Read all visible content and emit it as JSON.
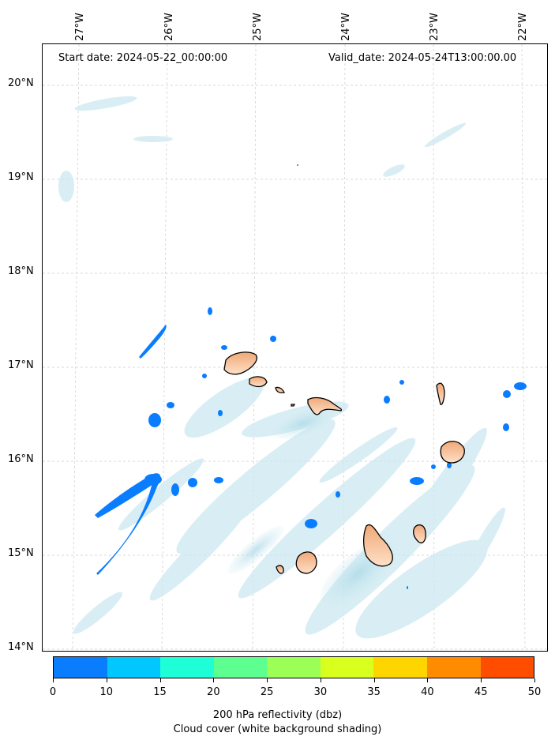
{
  "map": {
    "start_label": "Start date: 2024-05-22_00:00:00",
    "valid_label": "Valid_date: 2024-05-24T13:00:00.00",
    "longitudes": [
      "27°W",
      "26°W",
      "25°W",
      "24°W",
      "23°W",
      "22°W"
    ],
    "latitudes": [
      "20°N",
      "19°N",
      "18°N",
      "17°N",
      "16°N",
      "15°N",
      "14°N"
    ]
  },
  "colorbar": {
    "ticks": [
      "0",
      "10",
      "15",
      "20",
      "25",
      "30",
      "35",
      "40",
      "45",
      "50"
    ],
    "colors": [
      "#0a7dff",
      "#00c8ff",
      "#1effd8",
      "#5dff90",
      "#9bff55",
      "#d8ff1e",
      "#ffd500",
      "#ff8c00",
      "#ff4d00"
    ],
    "caption_line1": "200 hPa reflectivity (dbz)",
    "caption_line2": "Cloud cover (white background shading)"
  }
}
